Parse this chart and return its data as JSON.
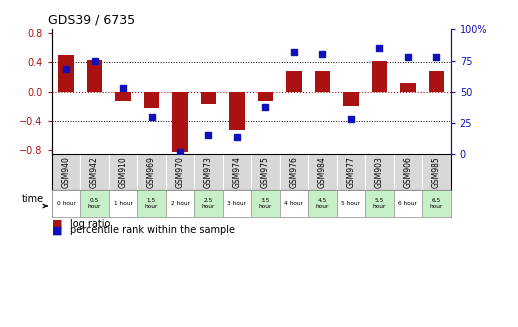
{
  "title": "GDS39 / 6735",
  "samples": [
    "GSM940",
    "GSM942",
    "GSM910",
    "GSM969",
    "GSM970",
    "GSM973",
    "GSM974",
    "GSM975",
    "GSM976",
    "GSM984",
    "GSM977",
    "GSM903",
    "GSM906",
    "GSM985"
  ],
  "time_labels": [
    "0 hour",
    "0.5\nhour",
    "1 hour",
    "1.5\nhour",
    "2 hour",
    "2.5\nhour",
    "3 hour",
    "3.5\nhour",
    "4 hour",
    "4.5\nhour",
    "5 hour",
    "5.5\nhour",
    "6 hour",
    "6.5\nhour"
  ],
  "log_ratio": [
    0.5,
    0.43,
    -0.13,
    -0.22,
    -0.82,
    -0.17,
    -0.52,
    -0.12,
    0.28,
    0.28,
    -0.2,
    0.42,
    0.12,
    0.28
  ],
  "percentile": [
    68,
    75,
    53,
    30,
    2,
    15,
    14,
    38,
    82,
    80,
    28,
    85,
    78,
    78
  ],
  "time_colors": [
    "#ffffff",
    "#c8f0c8",
    "#ffffff",
    "#c8f0c8",
    "#ffffff",
    "#c8f0c8",
    "#ffffff",
    "#c8f0c8",
    "#ffffff",
    "#c8f0c8",
    "#ffffff",
    "#c8f0c8",
    "#ffffff",
    "#c8f0c8"
  ],
  "bar_color": "#aa1111",
  "dot_color": "#1111bb",
  "ylim_left": [
    -0.85,
    0.85
  ],
  "ylim_right": [
    0,
    100
  ],
  "yticks_left": [
    -0.8,
    -0.4,
    0.0,
    0.4,
    0.8
  ],
  "yticks_right": [
    0,
    25,
    50,
    75,
    100
  ],
  "background_color": "#ffffff",
  "plot_bg": "#ffffff"
}
